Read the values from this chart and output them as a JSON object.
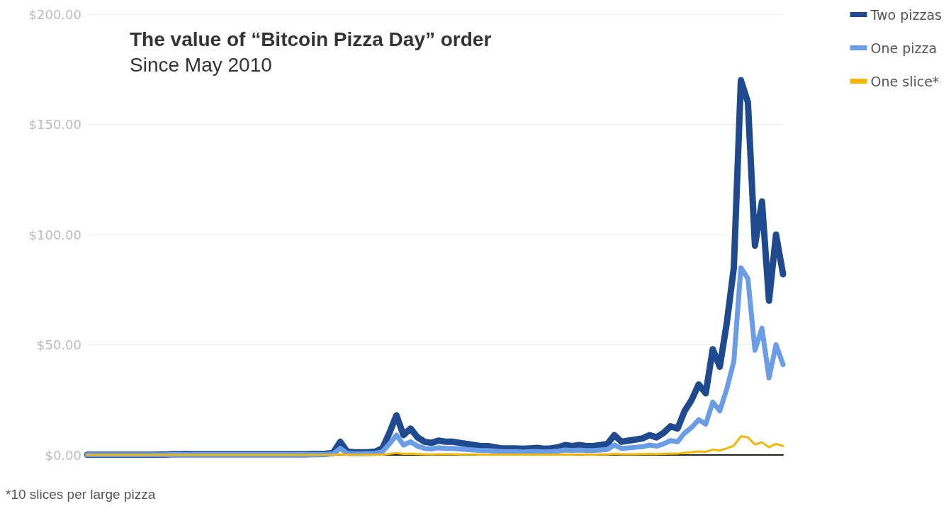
{
  "chart_data": {
    "type": "line",
    "title": "The value of “Bitcoin Pizza Day” order",
    "subtitle": "Since May 2010",
    "annotations": [
      "*10 slices per large pizza"
    ],
    "categories": [
      null,
      null,
      null,
      null,
      null,
      null,
      null,
      null,
      null,
      null,
      null,
      null,
      null,
      null,
      null,
      null,
      null,
      null,
      null,
      null,
      null,
      null,
      null,
      null,
      null,
      null,
      null,
      null,
      null,
      null,
      null,
      null,
      null,
      null,
      null,
      null,
      null,
      null,
      null,
      null,
      null,
      null,
      null,
      null,
      null,
      null,
      null,
      null,
      null,
      null,
      null,
      null,
      null,
      null,
      null,
      null,
      null,
      null,
      null,
      null,
      null,
      null,
      null,
      null,
      null,
      null,
      null,
      null,
      null,
      null,
      null,
      null,
      null,
      null,
      null,
      null,
      null,
      null,
      null,
      null,
      null,
      null,
      null,
      null,
      null,
      null,
      null,
      null,
      null,
      null,
      null,
      null,
      null,
      null,
      null,
      null,
      null,
      null,
      null,
      null
    ],
    "series": [
      {
        "name": "Two pizzas",
        "color": "#1f4a8f",
        "values": [
          0.1,
          0.1,
          0.1,
          0.1,
          0.1,
          0.1,
          0.1,
          0.1,
          0.1,
          0.1,
          0.2,
          0.2,
          0.3,
          0.3,
          0.4,
          0.3,
          0.3,
          0.3,
          0.3,
          0.3,
          0.3,
          0.3,
          0.3,
          0.3,
          0.3,
          0.3,
          0.3,
          0.3,
          0.3,
          0.3,
          0.3,
          0.3,
          0.4,
          0.4,
          0.6,
          1,
          6,
          1.5,
          1.2,
          1.2,
          1.3,
          1.5,
          3,
          10,
          18,
          9,
          12,
          8,
          6,
          5.5,
          6.5,
          6,
          6,
          5.5,
          5,
          4.5,
          4,
          4,
          3.5,
          3,
          3,
          3,
          2.8,
          3,
          3.2,
          2.8,
          3,
          3.5,
          4.5,
          4,
          4.5,
          4,
          4,
          4.5,
          5,
          9,
          6,
          6.5,
          7,
          7.5,
          9,
          8,
          10,
          13,
          12,
          20,
          25,
          32,
          28,
          48,
          40,
          60,
          85,
          170,
          160,
          95,
          115,
          70,
          100,
          82
        ]
      },
      {
        "name": "One pizza",
        "color": "#6a9de6",
        "values": [
          0.05,
          0.05,
          0.05,
          0.05,
          0.05,
          0.05,
          0.05,
          0.05,
          0.05,
          0.05,
          0.1,
          0.1,
          0.15,
          0.15,
          0.2,
          0.15,
          0.15,
          0.15,
          0.15,
          0.15,
          0.15,
          0.15,
          0.15,
          0.15,
          0.15,
          0.15,
          0.15,
          0.15,
          0.15,
          0.15,
          0.15,
          0.15,
          0.2,
          0.2,
          0.3,
          0.5,
          3,
          0.75,
          0.6,
          0.6,
          0.65,
          0.75,
          1.5,
          5,
          9,
          4.5,
          6,
          4,
          3,
          2.75,
          3.25,
          3,
          3,
          2.75,
          2.5,
          2.25,
          2,
          2,
          1.75,
          1.5,
          1.5,
          1.5,
          1.4,
          1.5,
          1.6,
          1.4,
          1.5,
          1.75,
          2.25,
          2,
          2.25,
          2,
          2,
          2.25,
          2.5,
          4.5,
          3,
          3.25,
          3.5,
          3.75,
          4.5,
          4,
          5,
          6.5,
          6,
          10,
          12.5,
          16,
          14,
          24,
          20,
          30,
          42.5,
          85,
          80,
          47.5,
          57.5,
          35,
          50,
          41
        ]
      },
      {
        "name": "One slice*",
        "color": "#f2b705",
        "values": [
          0.005,
          0.005,
          0.005,
          0.005,
          0.005,
          0.005,
          0.005,
          0.005,
          0.005,
          0.005,
          0.01,
          0.01,
          0.015,
          0.015,
          0.02,
          0.015,
          0.015,
          0.015,
          0.015,
          0.015,
          0.015,
          0.015,
          0.015,
          0.015,
          0.015,
          0.015,
          0.015,
          0.015,
          0.015,
          0.015,
          0.015,
          0.015,
          0.02,
          0.02,
          0.03,
          0.05,
          0.3,
          0.075,
          0.06,
          0.06,
          0.065,
          0.075,
          0.15,
          0.5,
          0.9,
          0.45,
          0.6,
          0.4,
          0.3,
          0.275,
          0.325,
          0.3,
          0.3,
          0.275,
          0.25,
          0.225,
          0.2,
          0.2,
          0.175,
          0.15,
          0.15,
          0.15,
          0.14,
          0.15,
          0.16,
          0.14,
          0.15,
          0.175,
          0.225,
          0.2,
          0.225,
          0.2,
          0.2,
          0.225,
          0.25,
          0.45,
          0.3,
          0.325,
          0.35,
          0.375,
          0.45,
          0.4,
          0.5,
          0.65,
          0.6,
          1,
          1.25,
          1.6,
          1.4,
          2.4,
          2,
          3,
          4.25,
          8.5,
          8,
          4.75,
          5.75,
          3.5,
          5,
          4.1
        ]
      }
    ],
    "ylim": [
      0,
      200
    ],
    "yticks": [
      {
        "value": 0,
        "label": "$0.00"
      },
      {
        "value": 50,
        "label": "$50.00"
      },
      {
        "value": 100,
        "label": "$100.00"
      },
      {
        "value": 150,
        "label": "$150.00"
      },
      {
        "value": 200,
        "label": "$200.00"
      }
    ],
    "grid": "y",
    "legend": "top right",
    "marker": "none",
    "line_style": "solid"
  }
}
